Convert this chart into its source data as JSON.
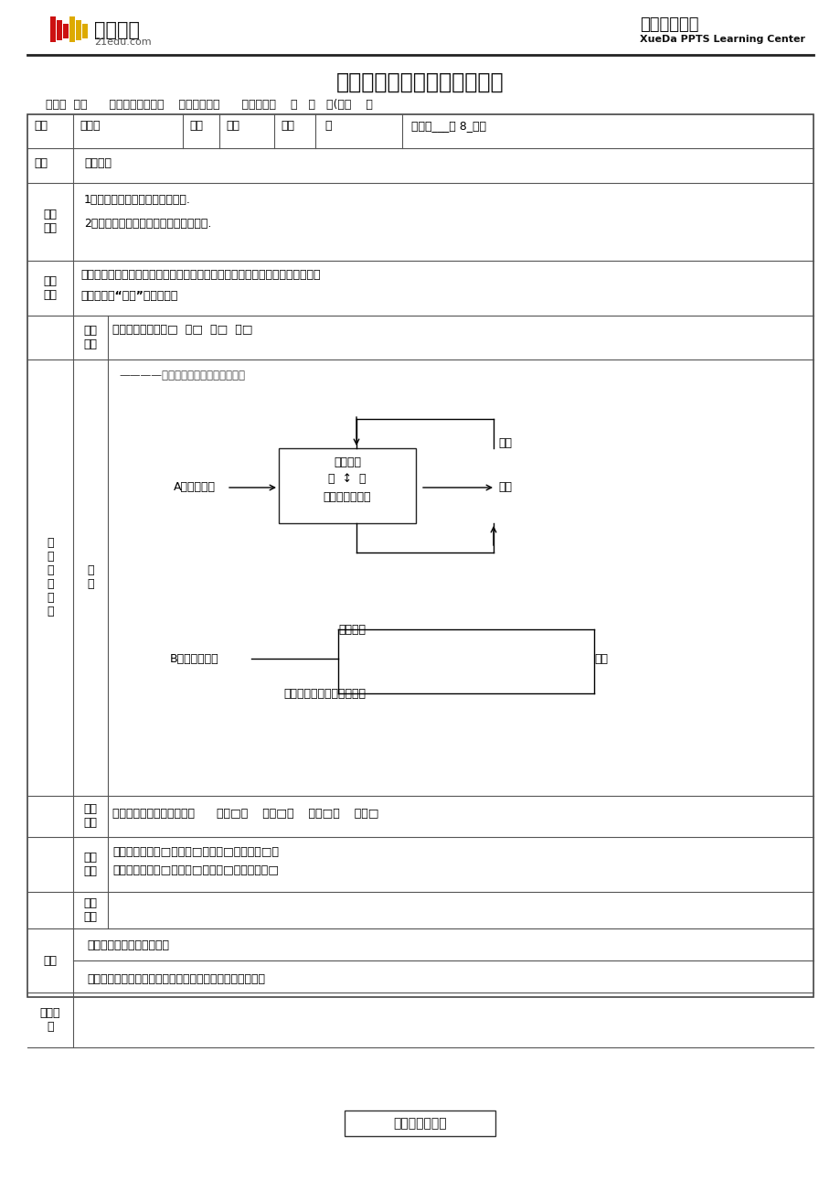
{
  "title": "学大教育个性化教学辅导教案",
  "subtitle_right": "教学设计方案",
  "subtitle_right2": "XueDa PPTS Learning Center",
  "header_line1": "学科：  数学      任课教师：饶彬彬    学管老师：徐      授课时间：    年   月   日(星期    ）",
  "row_name": "姓名",
  "name_val": "冷盈峰",
  "grade_label": "年级",
  "grade_val": "初二",
  "gender_label": "性别",
  "gender_val": "男",
  "total_hours": "总课时___第 8_课时",
  "subject_label": "课题",
  "subject_val": "勾股定理",
  "obj_val1": "1．运用勾股定理进行简单的计算.",
  "obj_val2": "2．运用勾股定理解释生活中的实际问题.",
  "diff_val1": "教学重点：实际问题转化成数学问题再转化到直角三角形利用勾股定理解决问题",
  "diff_val2": "教学难点：“转化”思想的应用",
  "pre_val": "作业完成情况：优□  良□  中□  差□",
  "process_note": "————教学具体内容要有提示或附后",
  "flow_A": "A、数形结合",
  "flow_box_line1": "勾股定理",
  "flow_box_line2": "逢  ↕  逢",
  "flow_box_line3": "勾股定理逢定理",
  "flow_huagui": "化归",
  "flow_yingyong1": "应用",
  "flow_B": "B、直角三角形",
  "flow_gougu": "勾股定理",
  "flow_yingyong2": "应用",
  "flow_panding": "判定直角三角形的一种方法",
  "class_perf_val": "听课及知识掌握情况反馈：      很好□；    较好□；    一般□；    较差□",
  "class_test_val1": "测试情况：优秀□；优良□；及格□；不及格□；",
  "class_test_val2": "教学需要：加快□；保持□；放慢□；增加内容□",
  "sign_val1": "教学主任或教学组长签字：",
  "sign_val2": "此教案与学生上课教案一致。学生签字：＿＿＿＿＿＿＿＿",
  "footer": "关注成长每一天",
  "bg_color": "#ffffff",
  "text_color": "#000000",
  "border_color": "#666666"
}
